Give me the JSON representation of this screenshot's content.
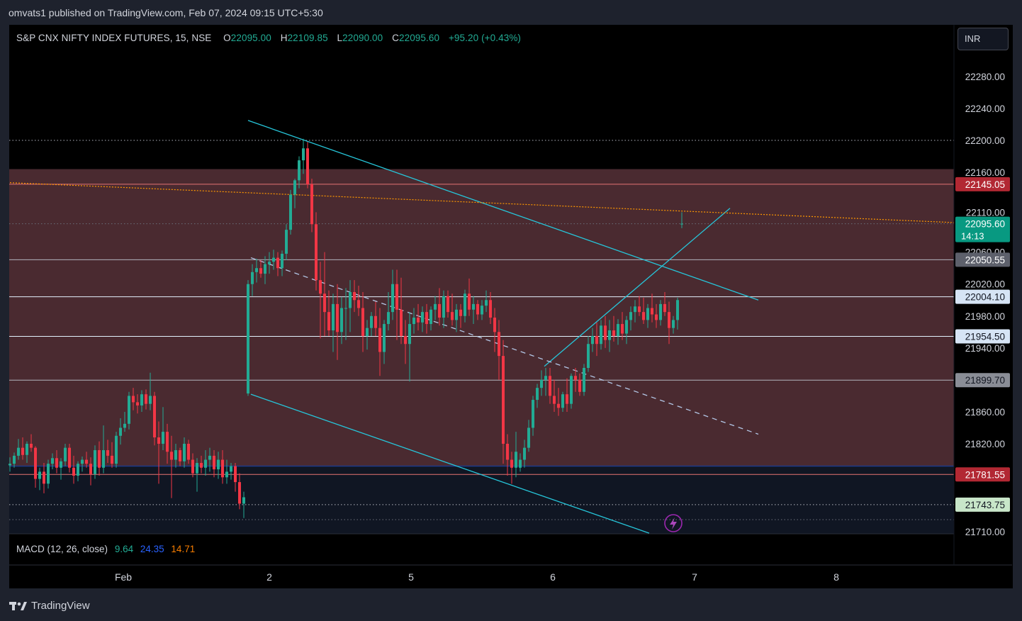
{
  "header": {
    "publish_text": "omvats1 published on TradingView.com, Feb 07, 2024 09:15 UTC+5:30"
  },
  "legend": {
    "symbol": "S&P CNX NIFTY INDEX FUTURES, 15, NSE",
    "open_label": "O",
    "open": "22095.00",
    "high_label": "H",
    "high": "22109.85",
    "low_label": "L",
    "low": "22090.00",
    "close_label": "C",
    "close": "22095.60",
    "change": "+95.20 (+0.43%)"
  },
  "currency": "INR",
  "macd": {
    "label": "MACD (12, 26, close)",
    "macd": "9.64",
    "signal": "24.35",
    "hist": "14.71"
  },
  "branding": {
    "logo_text": "TradingView"
  },
  "colors": {
    "up": "#22ab94",
    "down": "#f23645",
    "zone": "#4a2a30",
    "trendline": "#26c6da",
    "orange_line": "#ff9800"
  },
  "chart_data": {
    "type": "candlestick",
    "y_ticks": [
      "22280.00",
      "22240.00",
      "22200.00",
      "22160.00",
      "22110.00",
      "22060.00",
      "22020.00",
      "21980.00",
      "21940.00",
      "21860.00",
      "21820.00",
      "21710.00"
    ],
    "ylim": [
      21705,
      22320
    ],
    "x_ticks": [
      {
        "label": "Feb",
        "x": 80
      },
      {
        "label": "2",
        "x": 183
      },
      {
        "label": "5",
        "x": 283
      },
      {
        "label": "6",
        "x": 383
      },
      {
        "label": "7",
        "x": 483
      },
      {
        "label": "8",
        "x": 583
      }
    ],
    "xlim": [
      0,
      700
    ],
    "price_tags": [
      {
        "value": "22145.05",
        "bg": "#b22833",
        "fg": "#ffffff"
      },
      {
        "value": "22095.60",
        "bg": "#089981",
        "fg": "#ffffff",
        "sub": "14:13"
      },
      {
        "value": "22050.55",
        "bg": "#5d606b",
        "fg": "#ffffff"
      },
      {
        "value": "22004.10",
        "bg": "#d6e4f5",
        "fg": "#131722"
      },
      {
        "value": "21954.50",
        "bg": "#d6e4f5",
        "fg": "#131722"
      },
      {
        "value": "21899.70",
        "bg": "#8a8d96",
        "fg": "#131722"
      },
      {
        "value": "21781.55",
        "bg": "#b22833",
        "fg": "#ffffff"
      },
      {
        "value": "21743.75",
        "bg": "#c8e6c9",
        "fg": "#131722"
      }
    ],
    "horizontal_lines": [
      {
        "price": 22200,
        "style": "dotted",
        "color": "#b2b5be"
      },
      {
        "price": 22145.05,
        "style": "solid",
        "color": "#e57373"
      },
      {
        "price": 22095.6,
        "style": "dotted",
        "color": "#6b6f7a"
      },
      {
        "price": 22050.55,
        "style": "solid",
        "color": "#b2b5be"
      },
      {
        "price": 22004.1,
        "style": "solid",
        "color": "#e3f2fd"
      },
      {
        "price": 21954.5,
        "style": "solid",
        "color": "#e3f2fd"
      },
      {
        "price": 21899.7,
        "style": "solid",
        "color": "#b2b5be"
      },
      {
        "price": 21781.55,
        "style": "solid",
        "color": "#e57373"
      },
      {
        "price": 21743.75,
        "style": "dotted",
        "color": "#b2b5be"
      },
      {
        "price": 21725,
        "style": "dotted",
        "color": "#6b6f7a"
      }
    ],
    "zones": [
      {
        "top": 22164,
        "bottom": 21792,
        "color": "#4a2a30"
      },
      {
        "top": 21792,
        "bottom": 21705,
        "color": "#101623"
      }
    ],
    "trendlines": [
      {
        "x1": 168,
        "p1": 22225,
        "x2": 528,
        "p2": 22000,
        "color": "#26c6da",
        "style": "solid"
      },
      {
        "x1": 170,
        "p1": 21882,
        "x2": 451,
        "p2": 21708,
        "color": "#26c6da",
        "style": "solid"
      },
      {
        "x1": 377,
        "p1": 21917,
        "x2": 508,
        "p2": 22115,
        "color": "#26c6da",
        "style": "solid"
      },
      {
        "x1": 170,
        "p1": 22053,
        "x2": 528,
        "p2": 21832,
        "color": "#b3c7e6",
        "style": "dashed"
      },
      {
        "x1": 0,
        "p1": 22147,
        "x2": 667,
        "p2": 22097,
        "color": "#ff9800",
        "style": "dotted"
      }
    ],
    "candles": [
      [
        0,
        21793,
        21803,
        21785,
        21795
      ],
      [
        3,
        21795,
        21809,
        21790,
        21805
      ],
      [
        6,
        21805,
        21826,
        21800,
        21815
      ],
      [
        9,
        21815,
        21828,
        21800,
        21806
      ],
      [
        12,
        21806,
        21823,
        21796,
        21820
      ],
      [
        15,
        21820,
        21832,
        21810,
        21815
      ],
      [
        18,
        21815,
        21817,
        21765,
        21776
      ],
      [
        21,
        21776,
        21790,
        21762,
        21785
      ],
      [
        24,
        21785,
        21796,
        21758,
        21770
      ],
      [
        27,
        21770,
        21800,
        21764,
        21795
      ],
      [
        30,
        21795,
        21808,
        21788,
        21802
      ],
      [
        33,
        21802,
        21812,
        21783,
        21790
      ],
      [
        36,
        21790,
        21802,
        21775,
        21798
      ],
      [
        39,
        21798,
        21820,
        21792,
        21815
      ],
      [
        42,
        21815,
        21820,
        21784,
        21790
      ],
      [
        45,
        21790,
        21805,
        21770,
        21780
      ],
      [
        48,
        21780,
        21798,
        21773,
        21795
      ],
      [
        51,
        21795,
        21804,
        21785,
        21800
      ],
      [
        54,
        21800,
        21810,
        21790,
        21795
      ],
      [
        57,
        21795,
        21803,
        21768,
        21782
      ],
      [
        60,
        21782,
        21818,
        21776,
        21812
      ],
      [
        63,
        21812,
        21823,
        21780,
        21790
      ],
      [
        66,
        21790,
        21843,
        21783,
        21812
      ],
      [
        69,
        21812,
        21825,
        21796,
        21805
      ],
      [
        72,
        21805,
        21822,
        21790,
        21795
      ],
      [
        75,
        21795,
        21835,
        21790,
        21830
      ],
      [
        78,
        21830,
        21852,
        21819,
        21840
      ],
      [
        81,
        21840,
        21860,
        21835,
        21845
      ],
      [
        84,
        21845,
        21885,
        21838,
        21880
      ],
      [
        87,
        21880,
        21890,
        21862,
        21872
      ],
      [
        90,
        21872,
        21882,
        21858,
        21868
      ],
      [
        93,
        21868,
        21887,
        21860,
        21882
      ],
      [
        96,
        21882,
        21888,
        21863,
        21870
      ],
      [
        99,
        21870,
        21909,
        21862,
        21880
      ],
      [
        102,
        21880,
        21885,
        21818,
        21828
      ],
      [
        105,
        21828,
        21848,
        21770,
        21820
      ],
      [
        108,
        21820,
        21866,
        21812,
        21835
      ],
      [
        111,
        21835,
        21845,
        21795,
        21810
      ],
      [
        114,
        21810,
        21830,
        21752,
        21800
      ],
      [
        117,
        21800,
        21820,
        21790,
        21812
      ],
      [
        120,
        21812,
        21815,
        21792,
        21798
      ],
      [
        123,
        21798,
        21828,
        21790,
        21820
      ],
      [
        126,
        21820,
        21825,
        21795,
        21800
      ],
      [
        129,
        21800,
        21808,
        21778,
        21783
      ],
      [
        132,
        21783,
        21802,
        21760,
        21796
      ],
      [
        135,
        21796,
        21805,
        21783,
        21790
      ],
      [
        138,
        21790,
        21812,
        21780,
        21800
      ],
      [
        141,
        21800,
        21815,
        21785,
        21805
      ],
      [
        144,
        21805,
        21812,
        21778,
        21788
      ],
      [
        147,
        21788,
        21810,
        21776,
        21800
      ],
      [
        150,
        21800,
        21812,
        21770,
        21778
      ],
      [
        153,
        21778,
        21800,
        21770,
        21785
      ],
      [
        156,
        21785,
        21796,
        21775,
        21792
      ],
      [
        159,
        21792,
        21796,
        21760,
        21772
      ],
      [
        162,
        21772,
        21783,
        21738,
        21745
      ],
      [
        165,
        21745,
        21760,
        21727,
        21753
      ],
      [
        168,
        21883,
        22025,
        21880,
        22020
      ],
      [
        171,
        22020,
        22045,
        22005,
        22035
      ],
      [
        174,
        22035,
        22052,
        22022,
        22040
      ],
      [
        177,
        22040,
        22050,
        22028,
        22033
      ],
      [
        180,
        22033,
        22055,
        22020,
        22045
      ],
      [
        183,
        22045,
        22060,
        22033,
        22048
      ],
      [
        186,
        22048,
        22063,
        22038,
        22053
      ],
      [
        189,
        22053,
        22060,
        22030,
        22040
      ],
      [
        192,
        22040,
        22062,
        22030,
        22058
      ],
      [
        195,
        22058,
        22095,
        22050,
        22088
      ],
      [
        198,
        22088,
        22138,
        22082,
        22132
      ],
      [
        201,
        22132,
        22152,
        22115,
        22150
      ],
      [
        204,
        22150,
        22180,
        22140,
        22175
      ],
      [
        207,
        22175,
        22202,
        22158,
        22190
      ],
      [
        210,
        22190,
        22198,
        22140,
        22145
      ],
      [
        213,
        22145,
        22152,
        22085,
        22095
      ],
      [
        216,
        22095,
        22110,
        22012,
        22025
      ],
      [
        219,
        22025,
        22048,
        21952,
        22008
      ],
      [
        222,
        22008,
        22060,
        21955,
        21985
      ],
      [
        225,
        21985,
        22012,
        21955,
        21962
      ],
      [
        228,
        21962,
        22008,
        21935,
        21995
      ],
      [
        231,
        21995,
        22020,
        21925,
        21960
      ],
      [
        234,
        21960,
        22004,
        21945,
        21990
      ],
      [
        237,
        21990,
        22015,
        21950,
        21990
      ],
      [
        240,
        21990,
        22025,
        21960,
        22010
      ],
      [
        243,
        22010,
        22025,
        21985,
        22000
      ],
      [
        246,
        22000,
        22018,
        21980,
        21990
      ],
      [
        249,
        21990,
        22010,
        21935,
        21955
      ],
      [
        252,
        21955,
        21975,
        21938,
        21965
      ],
      [
        255,
        21965,
        21985,
        21955,
        21980
      ],
      [
        258,
        21980,
        21998,
        21955,
        21965
      ],
      [
        261,
        21965,
        21990,
        21905,
        21935
      ],
      [
        264,
        21935,
        21975,
        21920,
        21970
      ],
      [
        267,
        21970,
        22010,
        21962,
        21985
      ],
      [
        270,
        21985,
        22038,
        21975,
        22020
      ],
      [
        273,
        22020,
        22038,
        21950,
        21988
      ],
      [
        276,
        21988,
        22028,
        21945,
        21955
      ],
      [
        279,
        21955,
        21975,
        21920,
        21945
      ],
      [
        282,
        21945,
        21985,
        21898,
        21970
      ],
      [
        285,
        21970,
        21990,
        21958,
        21978
      ],
      [
        288,
        21978,
        21995,
        21962,
        21972
      ],
      [
        291,
        21972,
        21992,
        21960,
        21985
      ],
      [
        294,
        21985,
        21995,
        21958,
        21970
      ],
      [
        297,
        21970,
        21992,
        21962,
        21988
      ],
      [
        300,
        21988,
        22005,
        21975,
        21995
      ],
      [
        303,
        21995,
        22015,
        21968,
        21978
      ],
      [
        306,
        21978,
        22012,
        21965,
        22005
      ],
      [
        309,
        22005,
        22012,
        21978,
        21985
      ],
      [
        312,
        21985,
        22008,
        21968,
        21975
      ],
      [
        315,
        21975,
        21995,
        21960,
        21988
      ],
      [
        318,
        21988,
        21995,
        21965,
        21980
      ],
      [
        321,
        21980,
        22013,
        21972,
        22008
      ],
      [
        324,
        22008,
        22027,
        21980,
        21988
      ],
      [
        327,
        21988,
        22005,
        21970,
        21995
      ],
      [
        330,
        21995,
        22000,
        21975,
        21982
      ],
      [
        333,
        21982,
        22000,
        21975,
        21993
      ],
      [
        336,
        21993,
        22012,
        21985,
        22000
      ],
      [
        339,
        22000,
        22010,
        21970,
        21978
      ],
      [
        342,
        21978,
        21990,
        21935,
        21960
      ],
      [
        345,
        21960,
        21975,
        21900,
        21930
      ],
      [
        348,
        21930,
        21950,
        21795,
        21820
      ],
      [
        351,
        21820,
        21832,
        21780,
        21800
      ],
      [
        354,
        21800,
        21810,
        21770,
        21790
      ],
      [
        357,
        21790,
        21835,
        21778,
        21810
      ],
      [
        360,
        21790,
        21808,
        21785,
        21800
      ],
      [
        363,
        21800,
        21825,
        21790,
        21815
      ],
      [
        366,
        21815,
        21850,
        21810,
        21840
      ],
      [
        369,
        21840,
        21880,
        21830,
        21875
      ],
      [
        372,
        21875,
        21895,
        21865,
        21890
      ],
      [
        375,
        21890,
        21912,
        21880,
        21900
      ],
      [
        378,
        21900,
        21915,
        21880,
        21905
      ],
      [
        381,
        21905,
        21915,
        21870,
        21880
      ],
      [
        384,
        21880,
        21900,
        21860,
        21870
      ],
      [
        387,
        21870,
        21890,
        21855,
        21865
      ],
      [
        390,
        21865,
        21885,
        21860,
        21882
      ],
      [
        393,
        21882,
        21902,
        21860,
        21870
      ],
      [
        396,
        21870,
        21908,
        21864,
        21905
      ],
      [
        399,
        21905,
        21915,
        21885,
        21900
      ],
      [
        402,
        21900,
        21908,
        21880,
        21885
      ],
      [
        405,
        21885,
        21920,
        21880,
        21915
      ],
      [
        408,
        21915,
        21955,
        21910,
        21945
      ],
      [
        411,
        21945,
        21965,
        21935,
        21955
      ],
      [
        414,
        21955,
        21972,
        21930,
        21945
      ],
      [
        417,
        21945,
        21975,
        21938,
        21968
      ],
      [
        420,
        21968,
        21980,
        21940,
        21950
      ],
      [
        423,
        21950,
        21975,
        21935,
        21962
      ],
      [
        426,
        21962,
        21980,
        21948,
        21955
      ],
      [
        429,
        21955,
        21976,
        21944,
        21970
      ],
      [
        432,
        21970,
        21985,
        21950,
        21958
      ],
      [
        435,
        21958,
        21980,
        21945,
        21975
      ],
      [
        438,
        21975,
        21992,
        21962,
        21985
      ],
      [
        441,
        21985,
        22000,
        21972,
        21992
      ],
      [
        444,
        21992,
        22005,
        21980,
        21985
      ],
      [
        447,
        21985,
        22003,
        21970,
        21975
      ],
      [
        450,
        21975,
        21995,
        21965,
        21990
      ],
      [
        453,
        21990,
        22008,
        21972,
        21982
      ],
      [
        456,
        21982,
        21995,
        21965,
        21975
      ],
      [
        459,
        21975,
        22000,
        21968,
        21995
      ],
      [
        462,
        21995,
        22010,
        21980,
        21985
      ],
      [
        465,
        21985,
        21998,
        21945,
        21965
      ],
      [
        468,
        21965,
        21980,
        21958,
        21975
      ],
      [
        471,
        21975,
        22003,
        21963,
        22000
      ],
      [
        474,
        22095,
        22110,
        22090,
        22095.6
      ]
    ]
  }
}
